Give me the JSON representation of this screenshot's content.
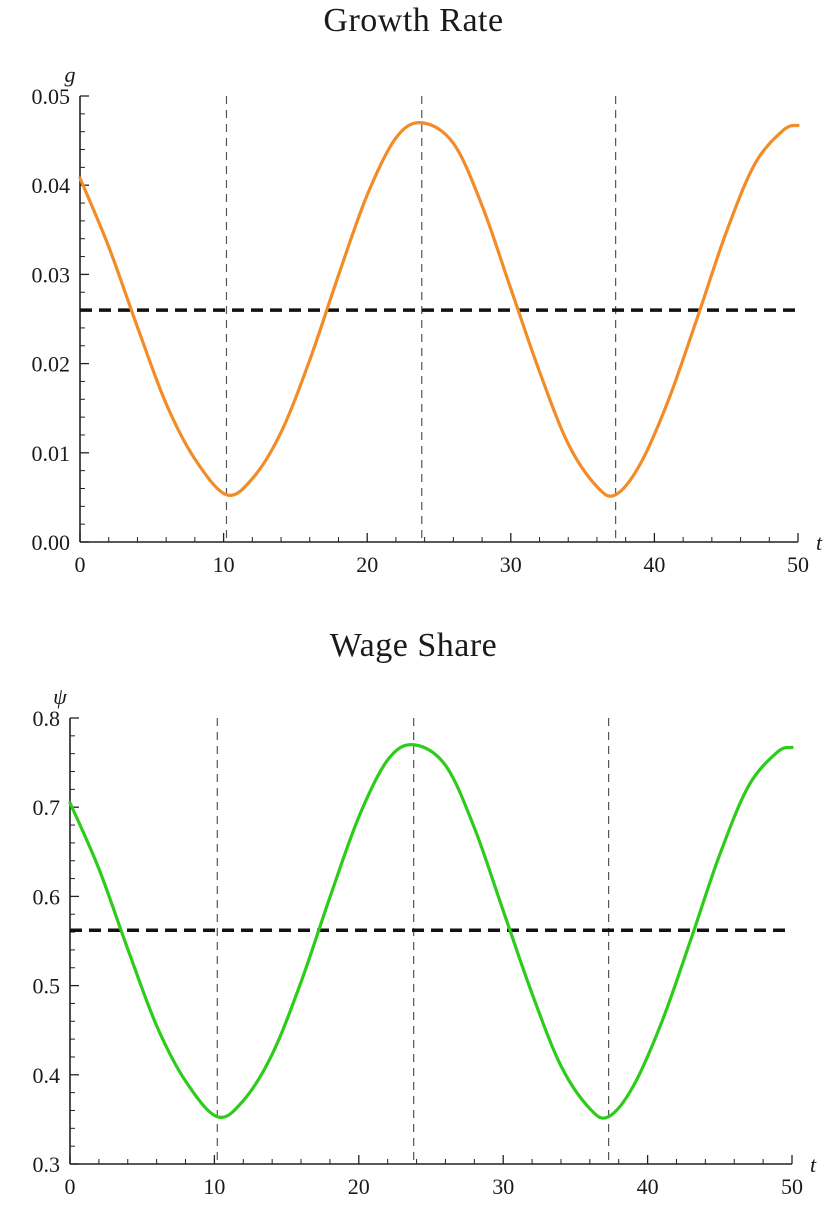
{
  "chart_data": [
    {
      "type": "line",
      "title": "Growth Rate",
      "xlabel": "t",
      "ylabel": "g",
      "xlim": [
        0,
        50
      ],
      "ylim": [
        0,
        0.05
      ],
      "x_ticks": [
        0,
        10,
        20,
        30,
        40,
        50
      ],
      "x_tick_labels": [
        "0",
        "10",
        "20",
        "30",
        "40",
        "50"
      ],
      "y_ticks": [
        0,
        0.01,
        0.02,
        0.03,
        0.04,
        0.05
      ],
      "y_tick_labels": [
        "0.00",
        "0.01",
        "0.02",
        "0.03",
        "0.04",
        "0.05"
      ],
      "grid": false,
      "series": [
        {
          "color": "#f28c28",
          "x": [
            0,
            2,
            4,
            6,
            8,
            10.2,
            12,
            14,
            16,
            18,
            20,
            22,
            23.8,
            26,
            28,
            30,
            32,
            34,
            36,
            37.3,
            39,
            41,
            43,
            45,
            47,
            49,
            50
          ],
          "y": [
            0.0408,
            0.0331,
            0.0241,
            0.0155,
            0.0093,
            0.0053,
            0.0071,
            0.0123,
            0.0204,
            0.0299,
            0.0389,
            0.0453,
            0.047,
            0.0447,
            0.0377,
            0.0284,
            0.0191,
            0.011,
            0.0062,
            0.0053,
            0.0087,
            0.016,
            0.0252,
            0.0347,
            0.0424,
            0.0462,
            0.0467
          ]
        }
      ],
      "reference_lines": {
        "horizontal_dashed": 0.026,
        "vertical_dashed": [
          10.2,
          23.8,
          37.3
        ]
      }
    },
    {
      "type": "line",
      "title": "Wage Share",
      "xlabel": "t",
      "ylabel": "ψ",
      "xlim": [
        0,
        50
      ],
      "ylim": [
        0.3,
        0.8
      ],
      "x_ticks": [
        0,
        10,
        20,
        30,
        40,
        50
      ],
      "x_tick_labels": [
        "0",
        "10",
        "20",
        "30",
        "40",
        "50"
      ],
      "y_ticks": [
        0.3,
        0.4,
        0.5,
        0.6,
        0.7,
        0.8
      ],
      "y_tick_labels": [
        "0.3",
        "0.4",
        "0.5",
        "0.6",
        "0.7",
        "0.8"
      ],
      "grid": false,
      "series": [
        {
          "color": "#2ecc1a",
          "x": [
            0,
            2,
            4,
            6,
            8,
            10.2,
            12,
            14,
            16,
            18,
            20,
            22,
            23.8,
            26,
            28,
            30,
            32,
            34,
            36,
            37.3,
            39,
            41,
            43,
            45,
            47,
            49,
            50
          ],
          "y": [
            0.705,
            0.631,
            0.541,
            0.455,
            0.393,
            0.353,
            0.371,
            0.423,
            0.504,
            0.599,
            0.689,
            0.753,
            0.77,
            0.747,
            0.677,
            0.584,
            0.491,
            0.41,
            0.362,
            0.353,
            0.387,
            0.46,
            0.552,
            0.647,
            0.724,
            0.762,
            0.767
          ]
        }
      ],
      "reference_lines": {
        "horizontal_dashed": 0.562,
        "vertical_dashed": [
          10.2,
          23.8,
          37.3
        ]
      }
    }
  ]
}
